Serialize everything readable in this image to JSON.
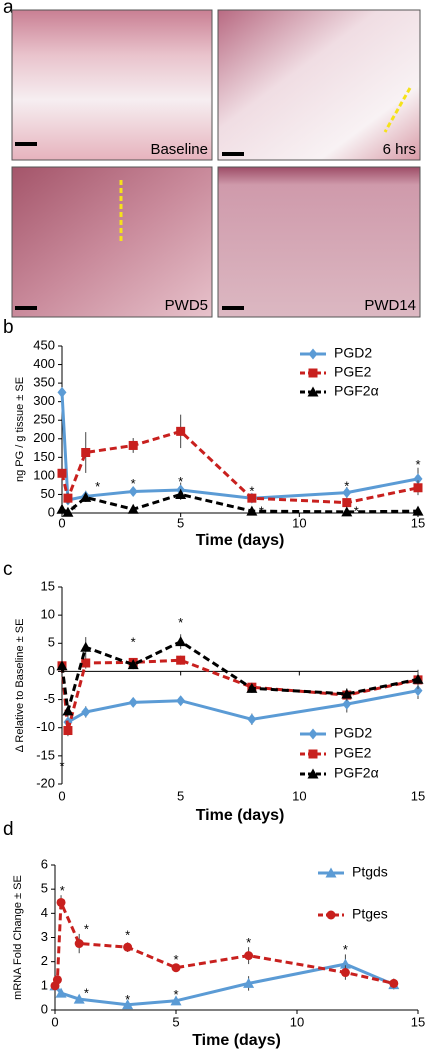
{
  "figure": {
    "panel_a": {
      "label": "a",
      "images": [
        {
          "label": "Baseline"
        },
        {
          "label": "6 hrs"
        },
        {
          "label": "PWD5"
        },
        {
          "label": "PWD14"
        }
      ]
    }
  },
  "chart_data": [
    {
      "type": "line",
      "panel": "b",
      "xlabel": "Time (days)",
      "ylabel": "ng PG / g tissue ± SE",
      "xlim": [
        0,
        15
      ],
      "xticks": [
        0,
        5,
        10,
        15
      ],
      "ylim": [
        0,
        450
      ],
      "yticks": [
        0,
        50,
        100,
        150,
        200,
        250,
        300,
        350,
        400,
        450
      ],
      "legend": "upper right",
      "series": [
        {
          "name": "PGD2",
          "color": "#5b9bd5",
          "marker": "diamond",
          "dashed": false,
          "x": [
            0,
            0.25,
            1,
            3,
            5,
            8,
            12,
            15
          ],
          "values": [
            325,
            35,
            45,
            58,
            62,
            40,
            55,
            92
          ],
          "errors": [
            0,
            10,
            15,
            10,
            20,
            8,
            15,
            30
          ]
        },
        {
          "name": "PGE2",
          "color": "#c8201e",
          "marker": "square",
          "dashed": true,
          "x": [
            0,
            0.25,
            1,
            3,
            5,
            8,
            12,
            15
          ],
          "values": [
            107,
            40,
            163,
            182,
            220,
            40,
            28,
            68
          ],
          "errors": [
            0,
            15,
            55,
            20,
            45,
            8,
            10,
            20
          ]
        },
        {
          "name": "PGF2α",
          "color": "#000000",
          "marker": "triangle",
          "dashed": true,
          "x": [
            0,
            0.25,
            1,
            3,
            5,
            8,
            12,
            15
          ],
          "values": [
            10,
            2,
            42,
            10,
            50,
            5,
            3,
            5
          ],
          "errors": [
            0,
            3,
            12,
            4,
            15,
            3,
            2,
            3
          ]
        }
      ],
      "annotations": [
        {
          "text": "*",
          "x": 1.5,
          "y": 68
        },
        {
          "text": "*",
          "x": 3,
          "y": 76
        },
        {
          "text": "*",
          "x": 5,
          "y": 82
        },
        {
          "text": "*",
          "x": 8,
          "y": 56
        },
        {
          "text": "*",
          "x": 12,
          "y": 70
        },
        {
          "text": "*",
          "x": 15,
          "y": 128
        },
        {
          "text": "*",
          "x": 0.5,
          "y": 6
        },
        {
          "text": "*",
          "x": 8.4,
          "y": 2
        },
        {
          "text": "*",
          "x": 12.4,
          "y": 2
        }
      ]
    },
    {
      "type": "line",
      "panel": "c",
      "xlabel": "Time (days)",
      "ylabel": "Δ Relative to Baseline ± SE",
      "xlim": [
        0,
        15
      ],
      "xticks": [
        0,
        5,
        10,
        15
      ],
      "ylim": [
        -20,
        15
      ],
      "yticks": [
        -20,
        -15,
        -10,
        -5,
        0,
        5,
        10,
        15
      ],
      "legend": "lower right",
      "series": [
        {
          "name": "PGD2",
          "color": "#5b9bd5",
          "marker": "diamond",
          "dashed": false,
          "x": [
            0.25,
            1,
            3,
            5,
            8,
            12,
            15
          ],
          "values": [
            -9,
            -7.2,
            -5.5,
            -5.2,
            -8.5,
            -5.8,
            -3.4
          ],
          "errors": [
            1,
            1,
            0.7,
            0.5,
            1,
            1.5,
            1.5
          ]
        },
        {
          "name": "PGE2",
          "color": "#c8201e",
          "marker": "square",
          "dashed": true,
          "x": [
            0,
            0.25,
            1,
            3,
            5,
            8,
            12,
            15
          ],
          "values": [
            1,
            -10.5,
            1.5,
            1.6,
            2,
            -2.8,
            -4.2,
            -1.5
          ],
          "errors": [
            0.5,
            1,
            1,
            0.7,
            0.8,
            0.8,
            1,
            1
          ]
        },
        {
          "name": "PGF2α",
          "color": "#000000",
          "marker": "triangle",
          "dashed": true,
          "x": [
            0,
            0.25,
            1,
            3,
            5,
            8,
            12,
            15
          ],
          "values": [
            1,
            -7,
            4.3,
            1.2,
            5.3,
            -3,
            -4,
            -1.4
          ],
          "errors": [
            0.5,
            1,
            1.8,
            0.8,
            1.3,
            0.8,
            1,
            1.7
          ]
        }
      ],
      "annotations": [
        {
          "text": "*",
          "x": 0,
          "y": -17
        },
        {
          "text": "*",
          "x": 3,
          "y": 5
        },
        {
          "text": "*",
          "x": 5,
          "y": 8.5
        }
      ]
    },
    {
      "type": "line",
      "panel": "d",
      "xlabel": "Time (days)",
      "ylabel": "mRNA Fold Change ± SE",
      "xlim": [
        0,
        15
      ],
      "xticks": [
        0,
        5,
        10,
        15
      ],
      "ylim": [
        0,
        6
      ],
      "yticks": [
        0,
        1,
        2,
        3,
        4,
        5,
        6
      ],
      "legend": "upper right",
      "series": [
        {
          "name": "Ptgds",
          "color": "#5b9bd5",
          "marker": "triangle",
          "dashed": false,
          "x": [
            0,
            0.25,
            1,
            3,
            5,
            8,
            12,
            14
          ],
          "values": [
            1,
            0.7,
            0.45,
            0.22,
            0.38,
            1.1,
            1.9,
            1.05
          ],
          "errors": [
            0,
            0.05,
            0.05,
            0.03,
            0.05,
            0.3,
            0.4,
            0.2
          ]
        },
        {
          "name": "Ptges",
          "color": "#c8201e",
          "marker": "circle",
          "dashed": true,
          "x": [
            0,
            0.1,
            0.25,
            1,
            3,
            5,
            8,
            12,
            14
          ],
          "values": [
            1,
            1.25,
            4.45,
            2.75,
            2.6,
            1.75,
            2.25,
            1.55,
            1.1
          ],
          "errors": [
            0,
            0,
            0.3,
            0.4,
            0.2,
            0.1,
            0.35,
            0.3,
            0.2
          ]
        }
      ],
      "annotations": [
        {
          "text": "*",
          "x": 0.3,
          "y": 4.9
        },
        {
          "text": "*",
          "x": 1.3,
          "y": 3.3
        },
        {
          "text": "*",
          "x": 3,
          "y": 3.05
        },
        {
          "text": "*",
          "x": 5,
          "y": 2.05
        },
        {
          "text": "*",
          "x": 8,
          "y": 2.75
        },
        {
          "text": "*",
          "x": 12,
          "y": 2.45
        },
        {
          "text": "*",
          "x": 1.3,
          "y": 0.65
        },
        {
          "text": "*",
          "x": 3,
          "y": 0.4
        },
        {
          "text": "*",
          "x": 5,
          "y": 0.6
        }
      ]
    }
  ]
}
